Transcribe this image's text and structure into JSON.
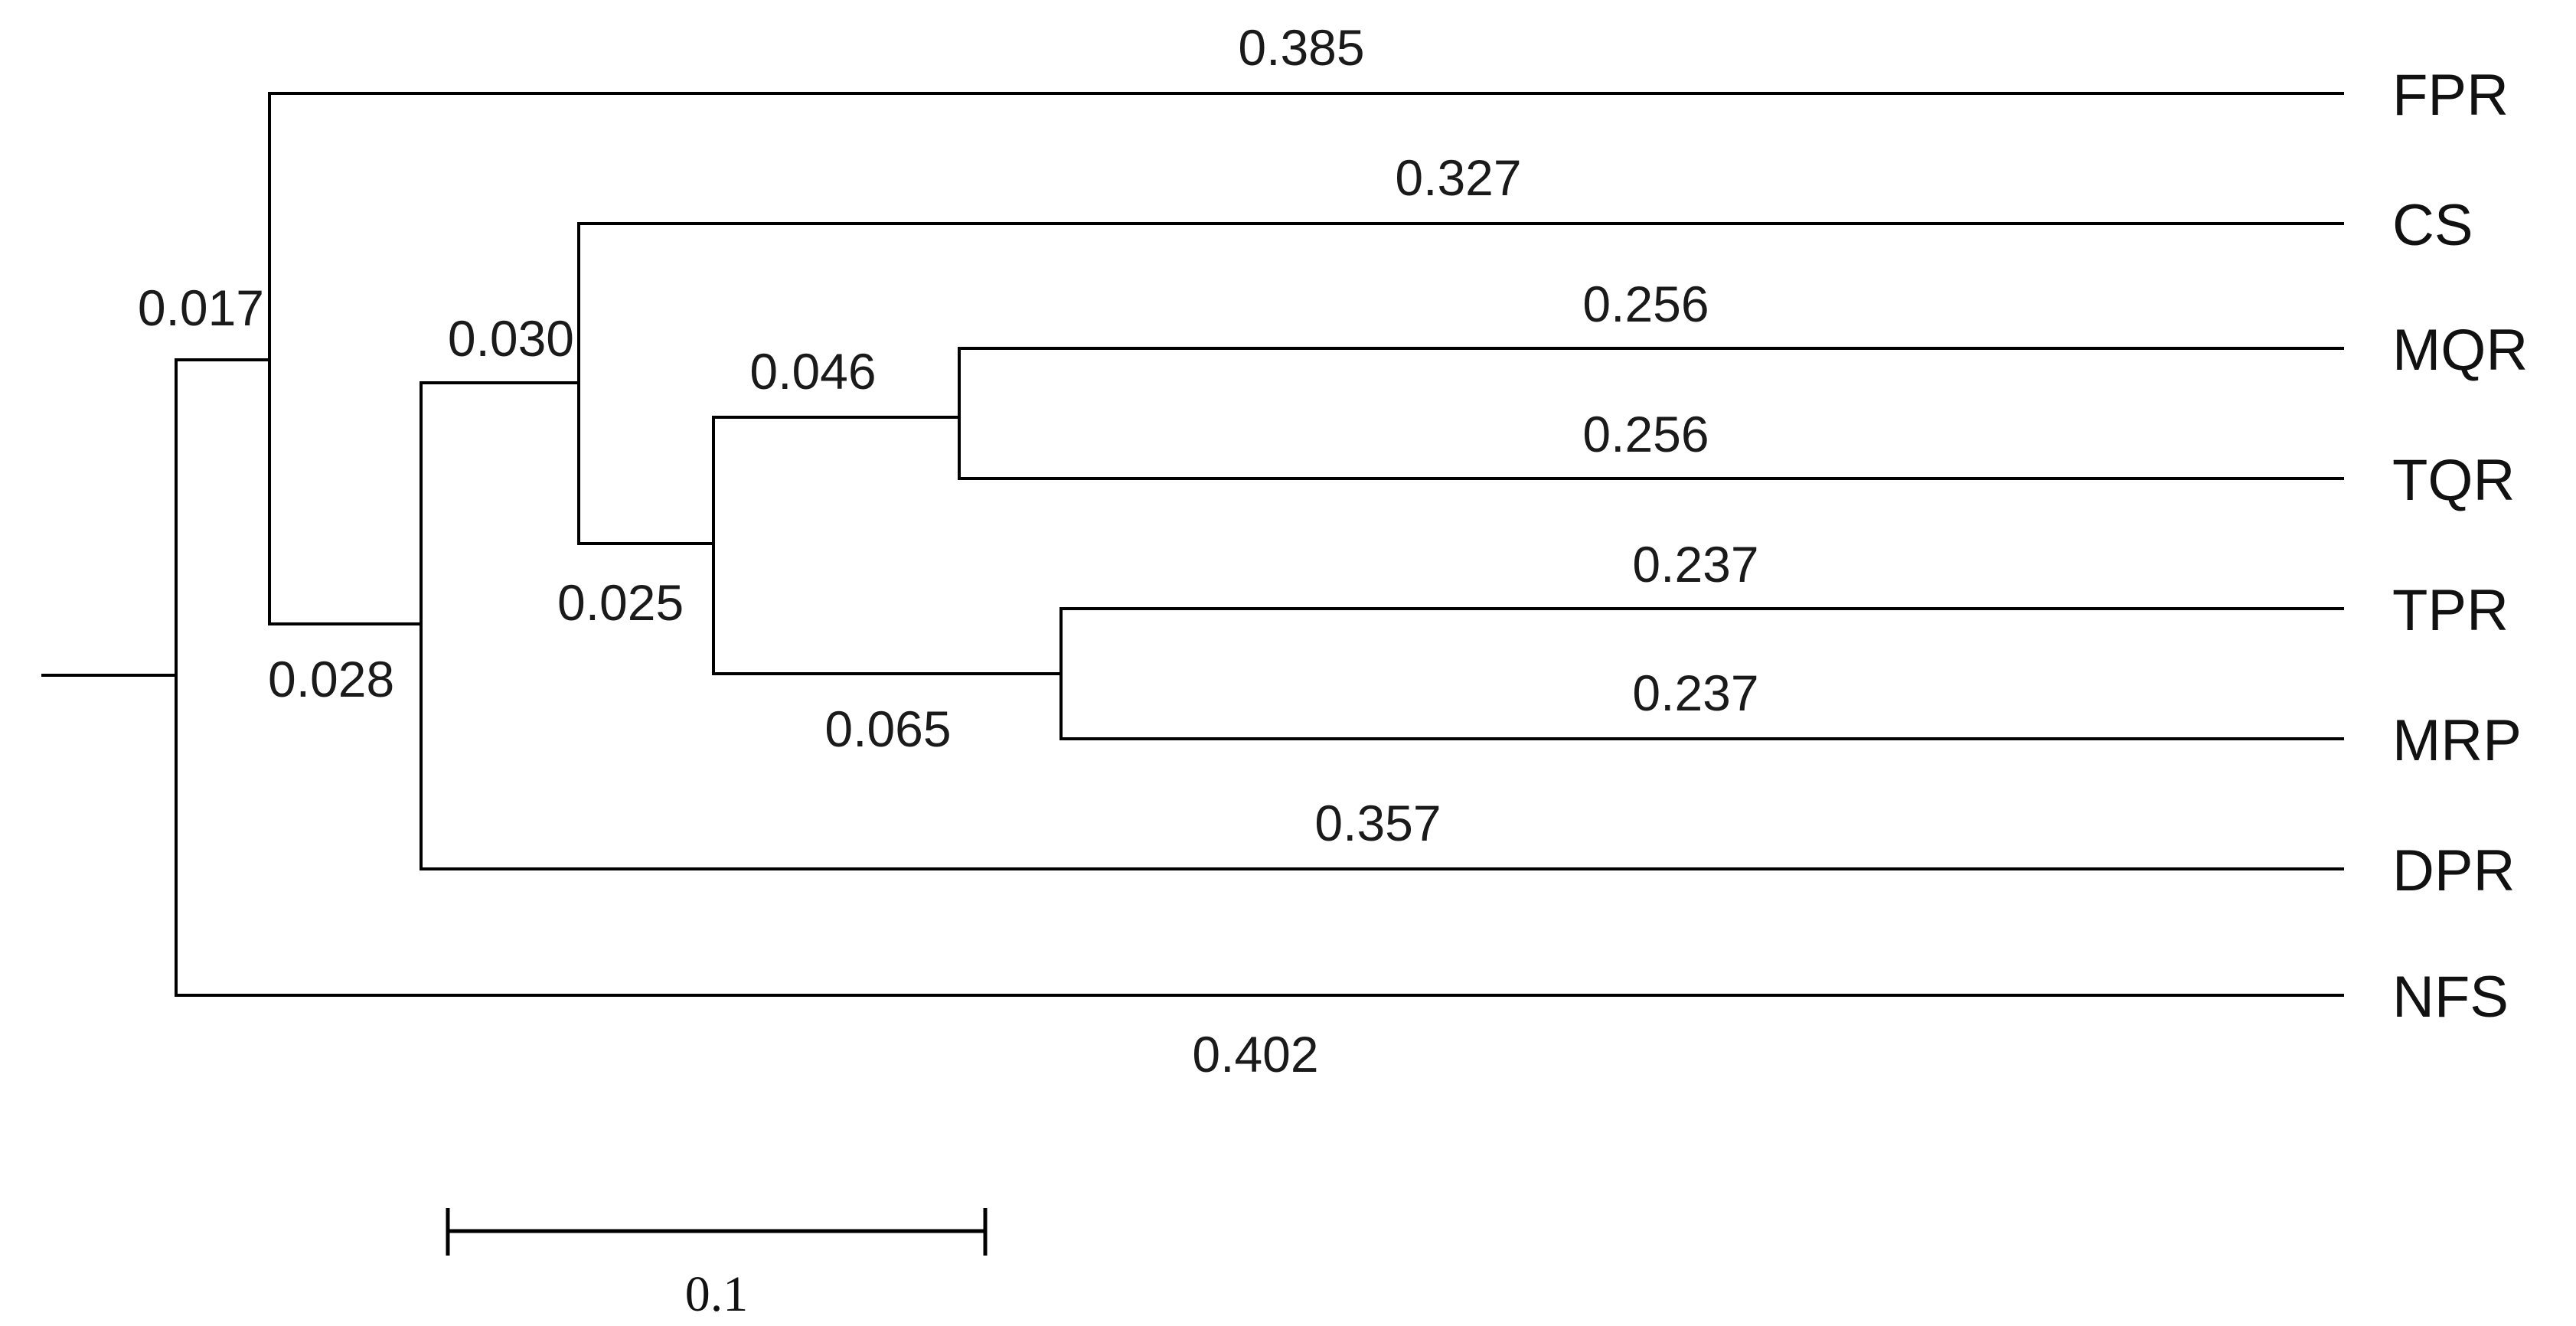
{
  "tree": {
    "leaves": [
      "FPR",
      "CS",
      "MQR",
      "TQR",
      "TPR",
      "MRP",
      "DPR",
      "NFS"
    ],
    "terminal_branch_lengths": {
      "FPR": "0.385",
      "CS": "0.327",
      "MQR": "0.256",
      "TQR": "0.256",
      "TPR": "0.237",
      "MRP": "0.237",
      "DPR": "0.357",
      "NFS": "0.402"
    },
    "internal_branch_lengths": {
      "fpr_clade": "0.017",
      "big_clade": "0.028",
      "cs_clade": "0.030",
      "inner_clade": "0.025",
      "mqr_tqr_clade": "0.046",
      "tpr_mrp_clade": "0.065"
    }
  },
  "scale_bar": {
    "label": "0.1",
    "value": 0.1
  }
}
